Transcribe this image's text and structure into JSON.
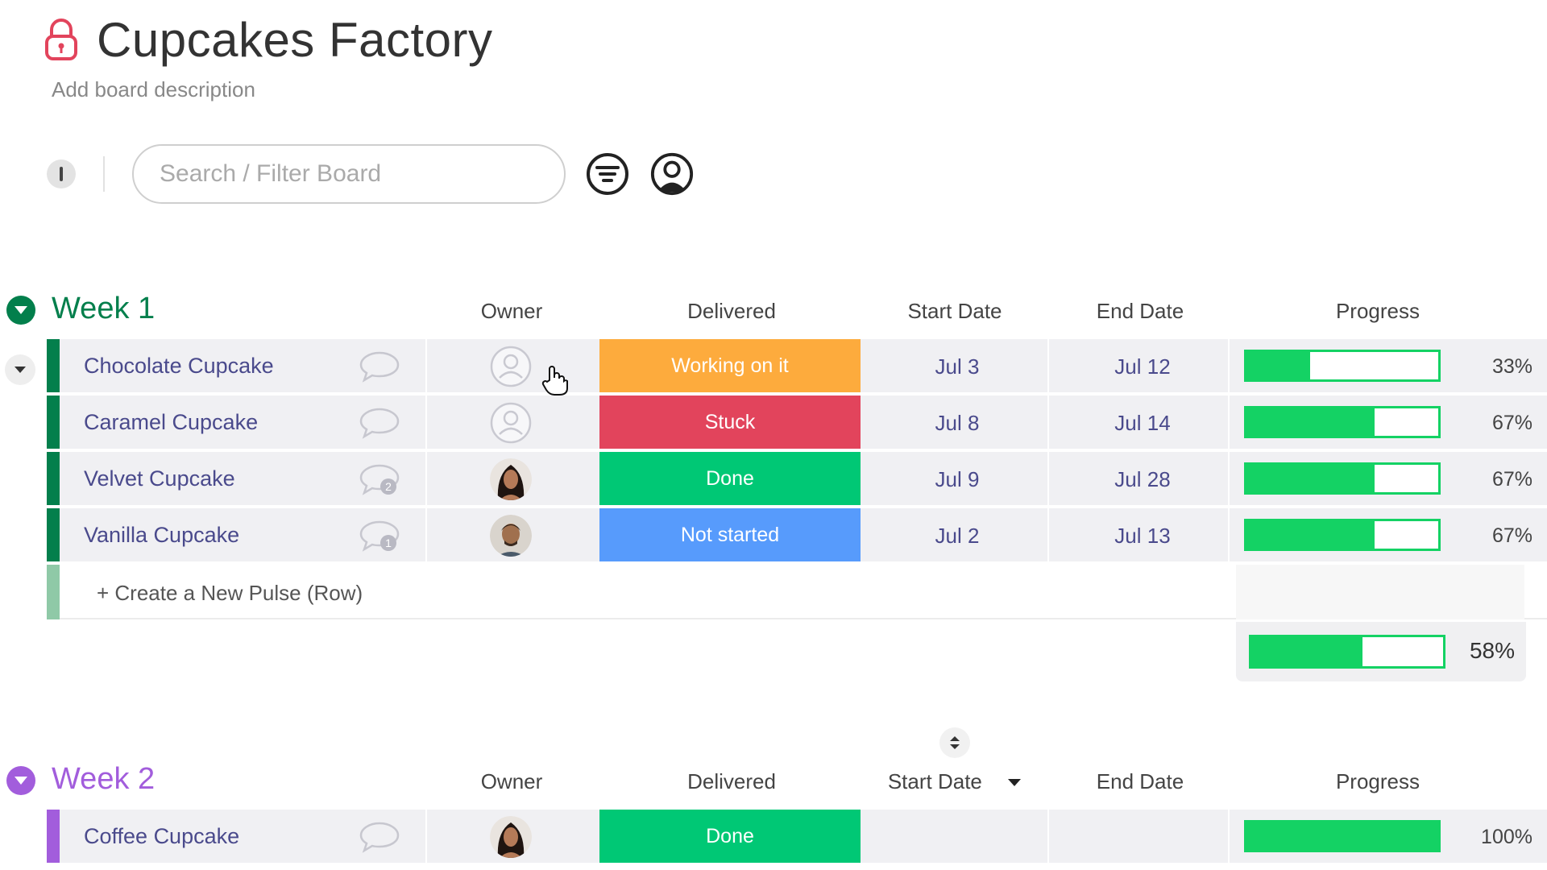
{
  "board": {
    "title": "Cupcakes Factory",
    "description": "Add board description",
    "search_placeholder": "Search / Filter Board"
  },
  "columns": {
    "owner": "Owner",
    "delivered": "Delivered",
    "start_date": "Start Date",
    "end_date": "End Date",
    "progress": "Progress"
  },
  "colors": {
    "week1": "#037f4c",
    "week2": "#a25ddc",
    "working": "#fdab3d",
    "stuck": "#e2445c",
    "done": "#00c875",
    "not_started": "#579bfc",
    "progress": "#14d264"
  },
  "week1": {
    "title": "Week 1",
    "rows": [
      {
        "name": "Chocolate Cupcake",
        "status": "Working on it",
        "start": "Jul 3",
        "end": "Jul 12",
        "progress": "33%",
        "progress_value": 0.33,
        "owner": "empty",
        "updates": ""
      },
      {
        "name": "Caramel Cupcake",
        "status": "Stuck",
        "start": "Jul 8",
        "end": "Jul 14",
        "progress": "67%",
        "progress_value": 0.67,
        "owner": "empty",
        "updates": ""
      },
      {
        "name": "Velvet Cupcake",
        "status": "Done",
        "start": "Jul 9",
        "end": "Jul 28",
        "progress": "67%",
        "progress_value": 0.67,
        "owner": "woman-avatar",
        "updates": "2"
      },
      {
        "name": "Vanilla Cupcake",
        "status": "Not started",
        "start": "Jul 2",
        "end": "Jul 13",
        "progress": "67%",
        "progress_value": 0.67,
        "owner": "man-avatar",
        "updates": "1"
      }
    ],
    "new_row": "+ Create a New Pulse (Row)",
    "summary": "58%",
    "summary_value": 0.58
  },
  "week2": {
    "title": "Week 2",
    "rows": [
      {
        "name": "Coffee Cupcake",
        "status": "Done",
        "start": "",
        "end": "",
        "progress": "100%",
        "progress_value": 1.0,
        "owner": "woman-avatar",
        "updates": ""
      }
    ]
  },
  "icons": [
    "lock-icon",
    "info-icon",
    "filter-icon",
    "person-icon",
    "chat-bubble-icon",
    "chevron-down-icon",
    "sort-icon",
    "hand-cursor-icon"
  ]
}
